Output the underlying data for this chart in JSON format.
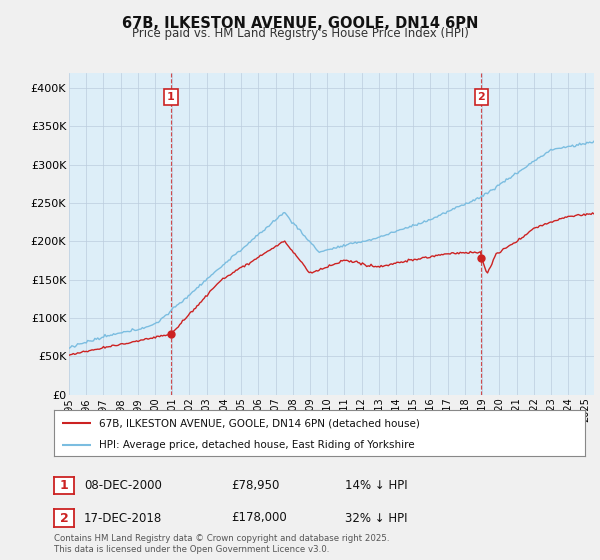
{
  "title": "67B, ILKESTON AVENUE, GOOLE, DN14 6PN",
  "subtitle": "Price paid vs. HM Land Registry's House Price Index (HPI)",
  "ylim": [
    0,
    420000
  ],
  "yticks": [
    0,
    50000,
    100000,
    150000,
    200000,
    250000,
    300000,
    350000,
    400000
  ],
  "ytick_labels": [
    "£0",
    "£50K",
    "£100K",
    "£150K",
    "£200K",
    "£250K",
    "£300K",
    "£350K",
    "£400K"
  ],
  "x_start_year": 1995,
  "x_end_year": 2025,
  "hpi_color": "#7bbde0",
  "hpi_fill": "#ddeef8",
  "price_color": "#cc2222",
  "marker1_year": 2000.92,
  "marker1_price_val": 78950,
  "marker1_hpi_val": 91800,
  "marker1_date": "08-DEC-2000",
  "marker1_price": "£78,950",
  "marker1_hpi_note": "14% ↓ HPI",
  "marker2_year": 2018.96,
  "marker2_price_val": 178000,
  "marker2_hpi_val": 262000,
  "marker2_date": "17-DEC-2018",
  "marker2_price": "£178,000",
  "marker2_hpi_note": "32% ↓ HPI",
  "legend_line1": "67B, ILKESTON AVENUE, GOOLE, DN14 6PN (detached house)",
  "legend_line2": "HPI: Average price, detached house, East Riding of Yorkshire",
  "footer": "Contains HM Land Registry data © Crown copyright and database right 2025.\nThis data is licensed under the Open Government Licence v3.0.",
  "background_color": "#f0f0f0",
  "plot_background": "#ddeef8",
  "grid_color": "#bbccdd"
}
